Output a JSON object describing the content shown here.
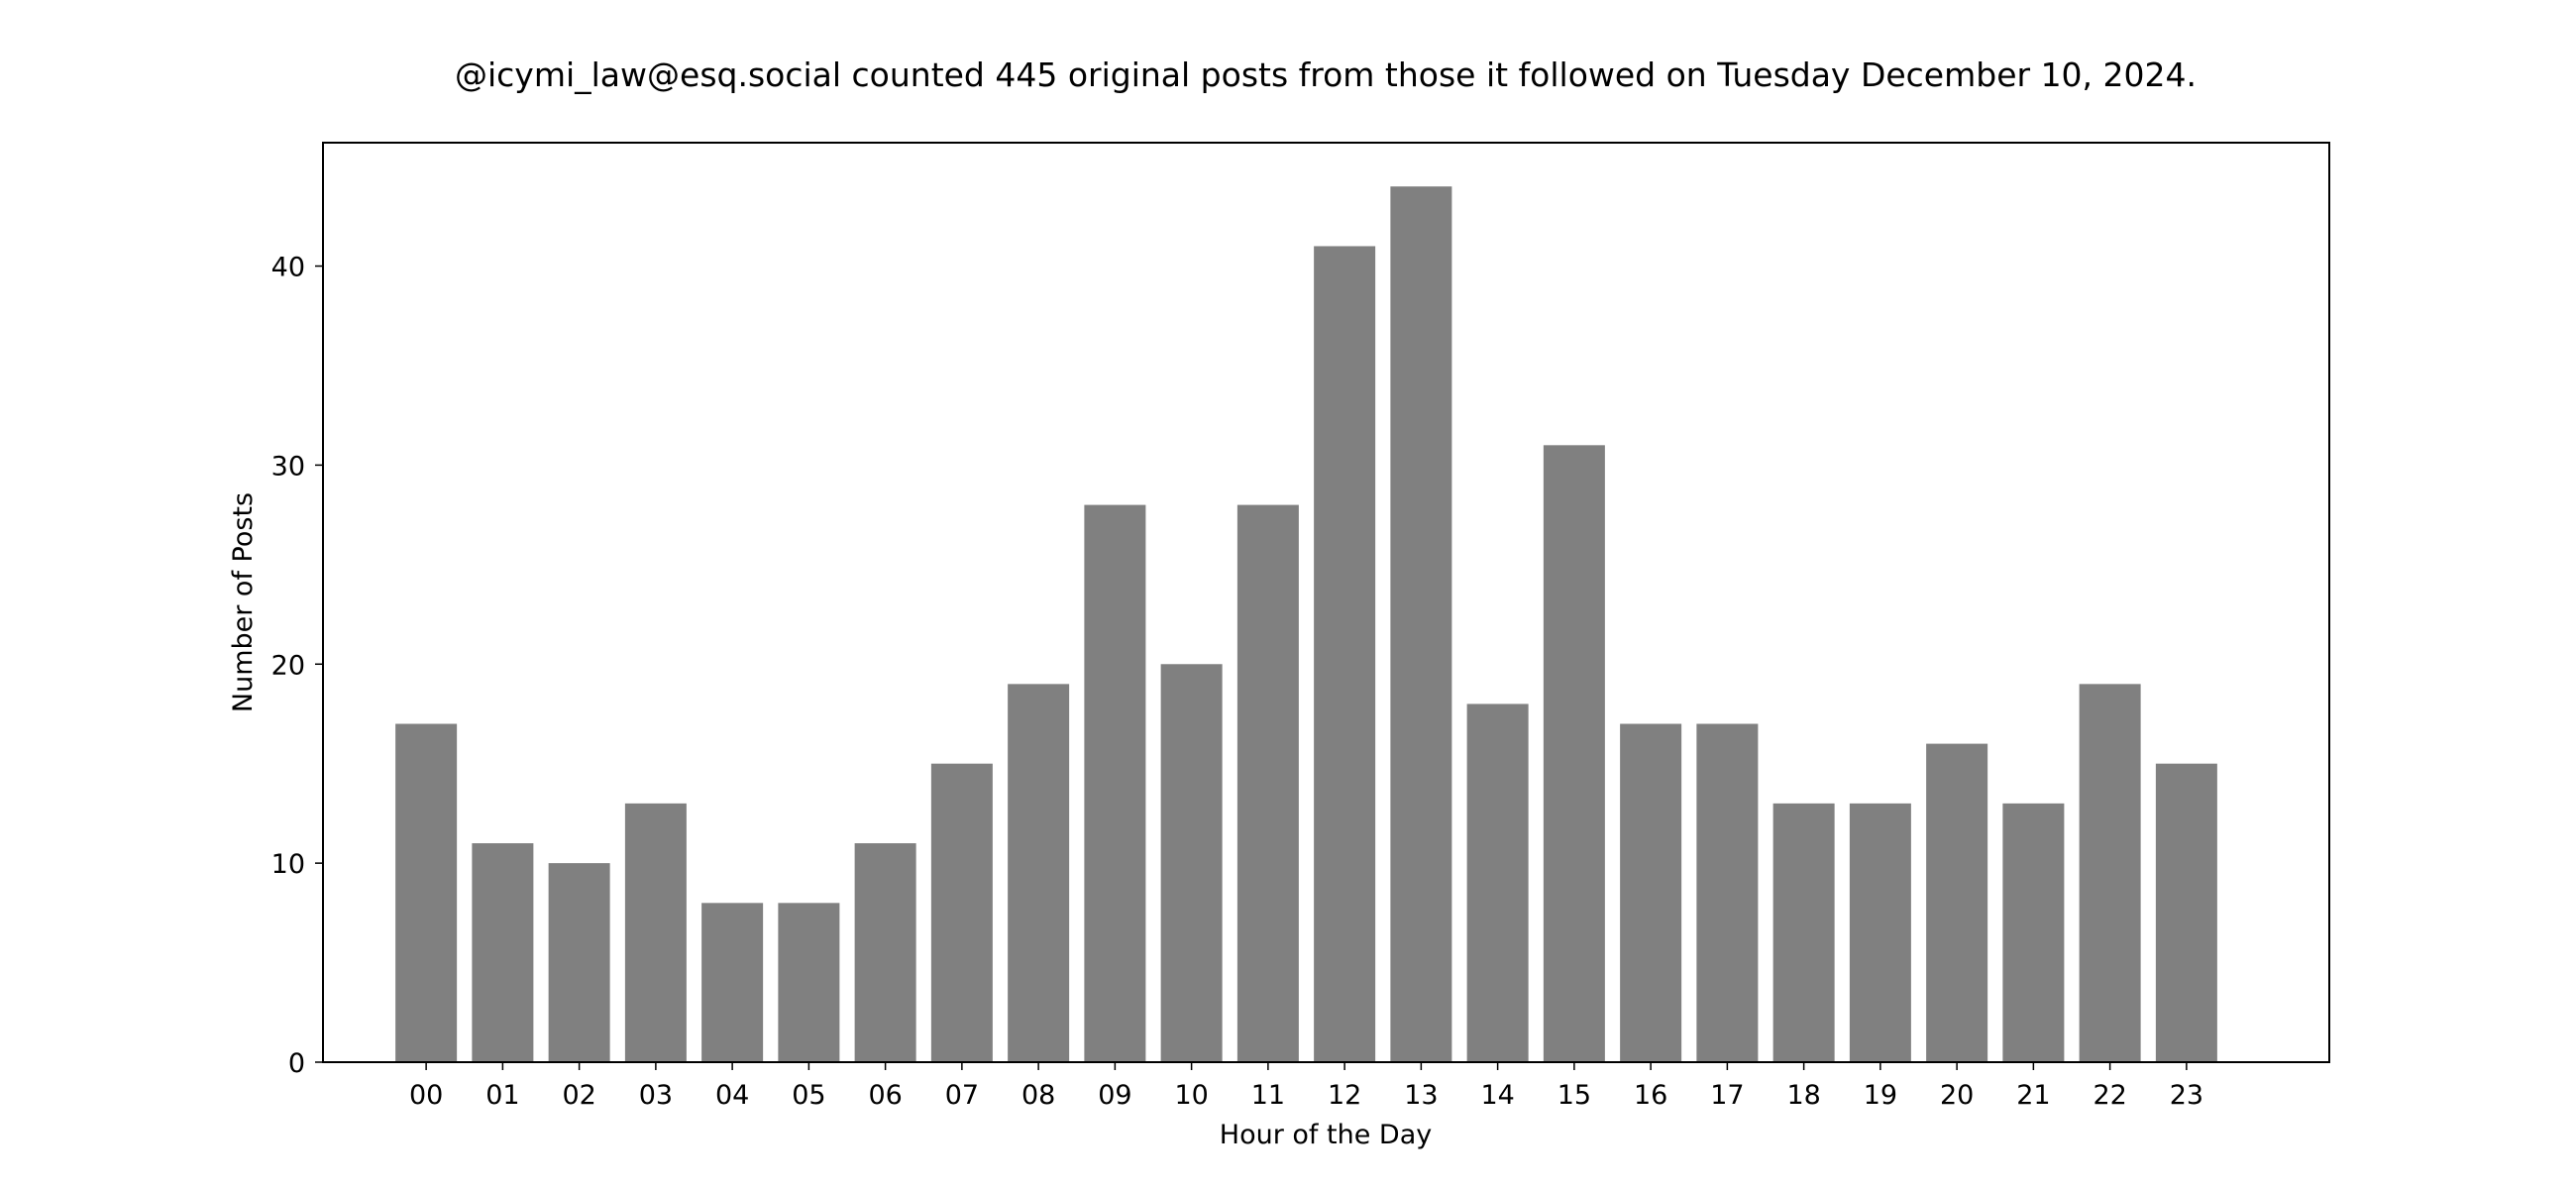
{
  "chart_data": {
    "type": "bar",
    "title": "@icymi_law@esq.social counted 445 original posts from those it followed on Tuesday December 10, 2024.",
    "xlabel": "Hour of the Day",
    "ylabel": "Number of Posts",
    "categories": [
      "00",
      "01",
      "02",
      "03",
      "04",
      "05",
      "06",
      "07",
      "08",
      "09",
      "10",
      "11",
      "12",
      "13",
      "14",
      "15",
      "16",
      "17",
      "18",
      "19",
      "20",
      "21",
      "22",
      "23"
    ],
    "values": [
      17,
      11,
      10,
      13,
      8,
      8,
      11,
      15,
      19,
      28,
      20,
      28,
      41,
      44,
      18,
      31,
      17,
      17,
      13,
      13,
      16,
      13,
      19,
      15
    ],
    "ylim": [
      0,
      46.2
    ],
    "yticks": [
      0,
      10,
      20,
      30,
      40
    ],
    "grid": false,
    "legend": "none",
    "bar_color": "#808080",
    "axis_color": "#000000",
    "background": "#ffffff"
  }
}
